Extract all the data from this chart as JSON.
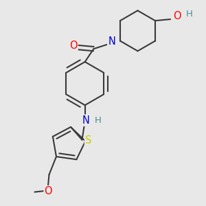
{
  "bg_color": "#e8e8e8",
  "bond_color": "#3a3a3a",
  "bond_width": 1.5,
  "atom_colors": {
    "O": "#ff0000",
    "N": "#0000cd",
    "S": "#cccc00",
    "H_label": "#4a9090",
    "C": "#3a3a3a"
  },
  "font_size": 9.5
}
